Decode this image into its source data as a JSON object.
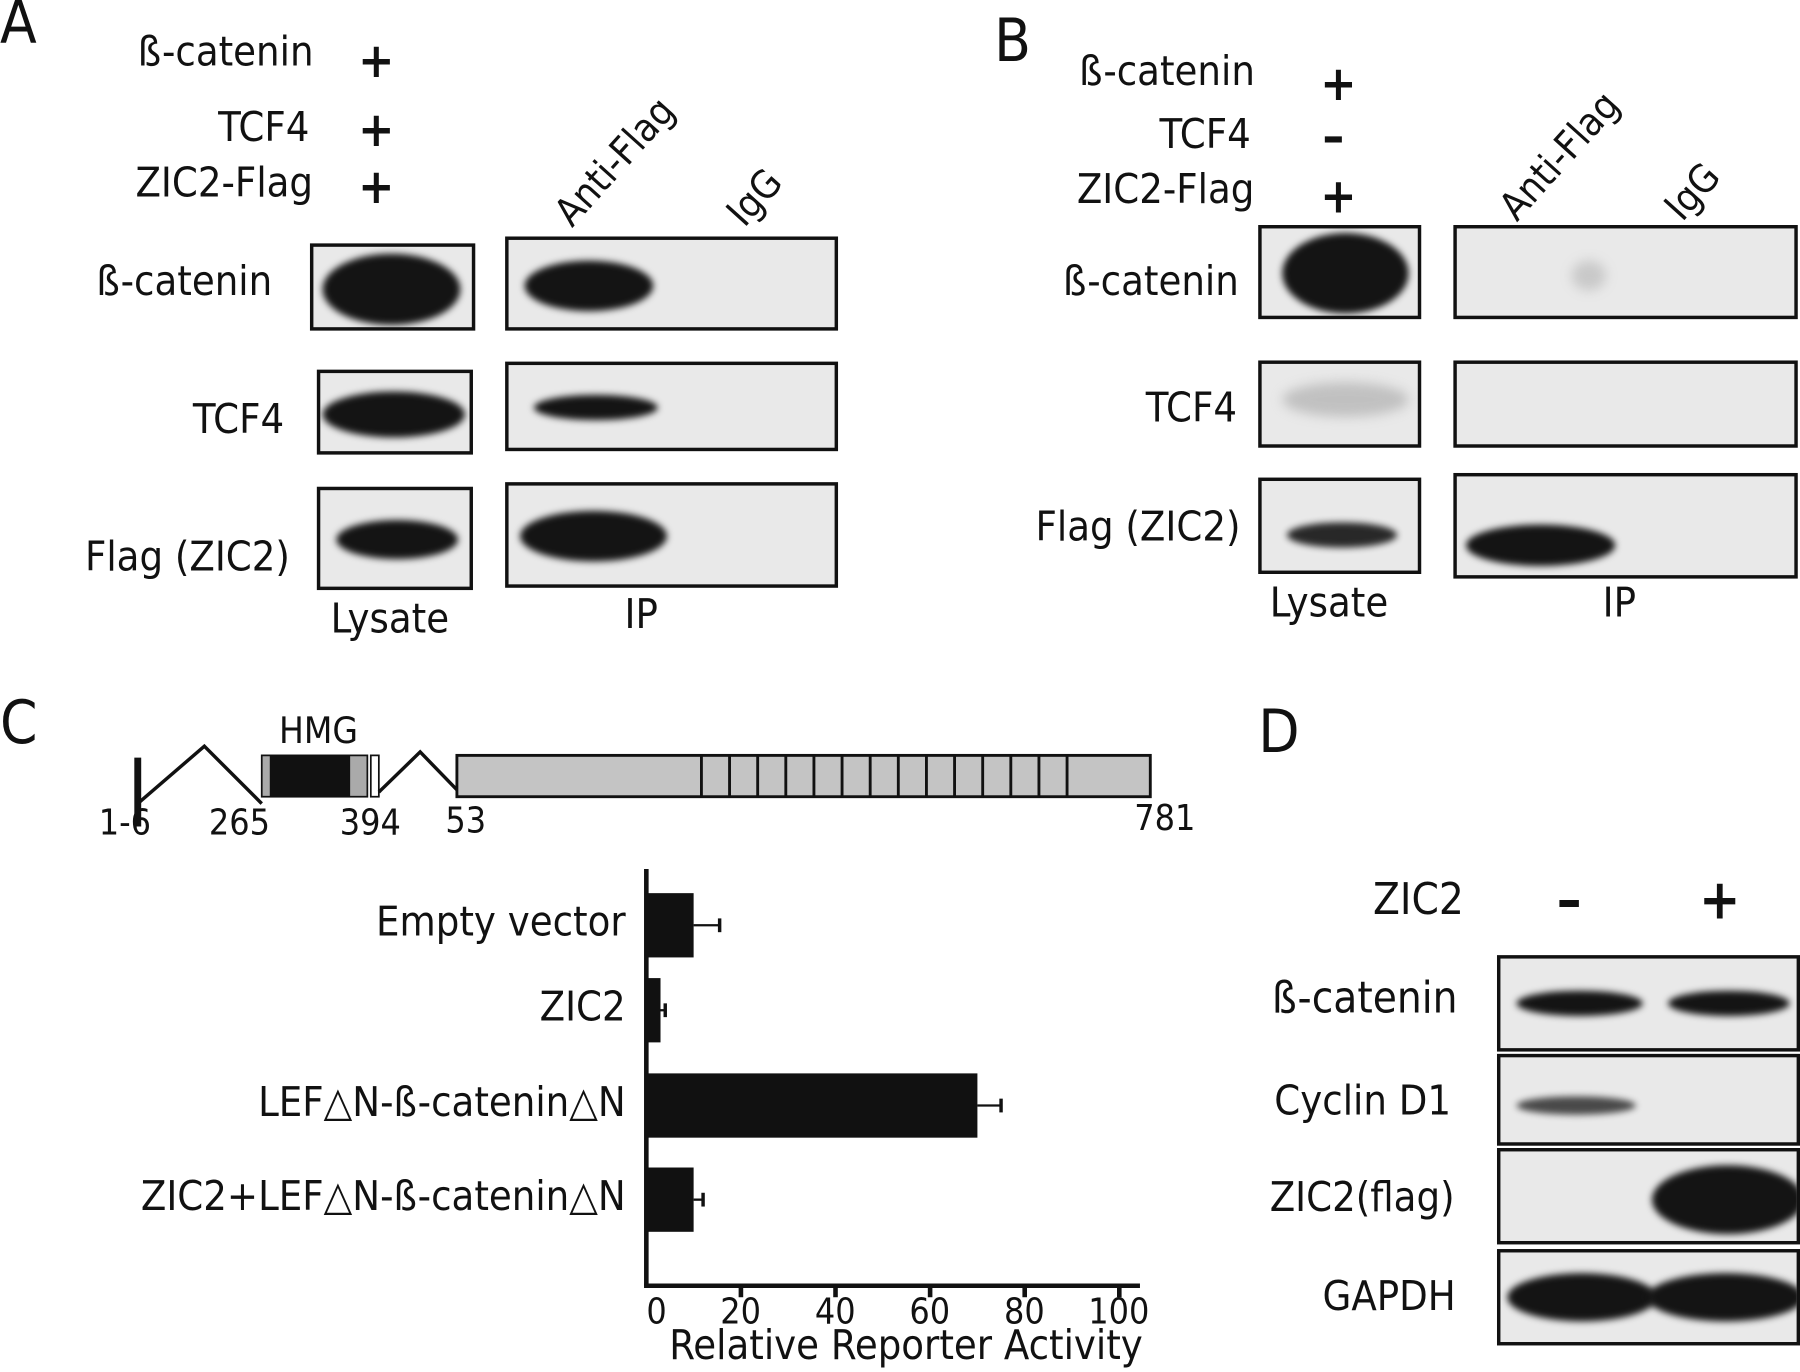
{
  "panelA": {
    "letter": "A",
    "conditions": [
      {
        "label": "ß-catenin",
        "sign": "+"
      },
      {
        "label": "TCF4",
        "sign": "+"
      },
      {
        "label": "ZIC2-Flag",
        "sign": "+"
      }
    ],
    "columns": [
      "Anti-Flag",
      "IgG"
    ],
    "rows": [
      "ß-catenin",
      "TCF4",
      "Flag (ZIC2)"
    ],
    "bottom_labels": [
      "Lysate",
      "IP"
    ]
  },
  "panelB": {
    "letter": "B",
    "conditions": [
      {
        "label": "ß-catenin",
        "sign": "+"
      },
      {
        "label": "TCF4",
        "sign": "–"
      },
      {
        "label": "ZIC2-Flag",
        "sign": "+"
      }
    ],
    "columns": [
      "Anti-Flag",
      "IgG"
    ],
    "rows": [
      "ß-catenin",
      "TCF4",
      "Flag (ZIC2)"
    ],
    "bottom_labels": [
      "Lysate",
      "IP"
    ]
  },
  "panelC": {
    "letter": "C",
    "diagram": {
      "domain_label": "HMG",
      "positions": [
        "1-6",
        "265",
        "394",
        "53",
        "781"
      ]
    }
  },
  "chart_data": {
    "type": "bar",
    "orientation": "horizontal",
    "categories": [
      "Empty vector",
      "ZIC2",
      "LEF△N-ß-catenin△N",
      "ZIC2+LEF△N-ß-catenin△N"
    ],
    "values": [
      10,
      3,
      70,
      10
    ],
    "error_upper": [
      15.5,
      4,
      75,
      12
    ],
    "xlabel": "Relative Reporter Activity",
    "xticks": [
      "0",
      "20",
      "40",
      "60",
      "80",
      "100"
    ],
    "xlim": [
      0,
      105
    ],
    "bar_color": "#111111",
    "grid": false
  },
  "panelD": {
    "letter": "D",
    "condition": {
      "label": "ZIC2",
      "signs": [
        "–",
        "+"
      ]
    },
    "rows": [
      "ß-catenin",
      "Cyclin D1",
      "ZIC2(flag)",
      "GAPDH"
    ]
  }
}
